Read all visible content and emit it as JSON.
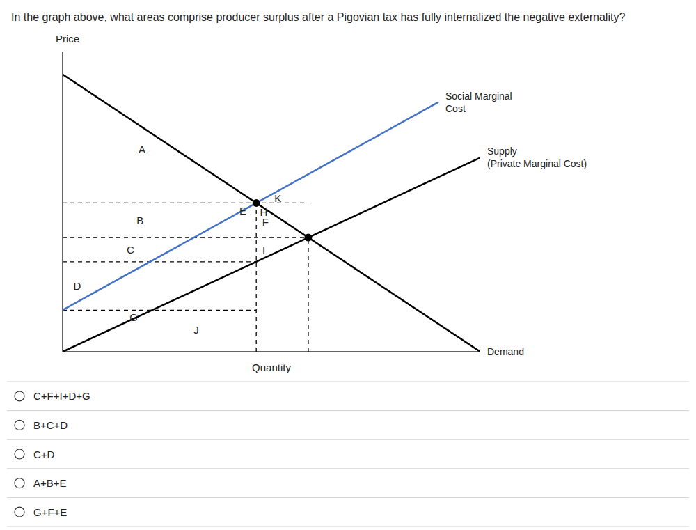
{
  "chart_data": {
    "type": "line",
    "title": "In the graph above, what areas comprise producer surplus after a Pigovian tax has fully internalized the negative externality?",
    "xlabel": "Quantity",
    "ylabel": "Price",
    "xlim": [
      0,
      10
    ],
    "ylim": [
      0,
      10.8
    ],
    "tick_labels": false,
    "grid": false,
    "series": [
      {
        "name": "Demand",
        "type": "line",
        "color": "#000000",
        "x": [
          0,
          10
        ],
        "values": [
          10,
          0
        ]
      },
      {
        "name": "Supply\n(Private Marginal Cost)",
        "type": "line",
        "color": "#000000",
        "x": [
          0,
          10
        ],
        "values": [
          0,
          7
        ]
      },
      {
        "name": "Social Marginal\nCost",
        "type": "line",
        "color": "#4472c4",
        "x": [
          0,
          9
        ],
        "values": [
          1.5,
          9.0
        ]
      },
      {
        "type": "scatter",
        "marker": "circle",
        "color": "#000000",
        "x": [
          4.636363636363637,
          5.882352941176471
        ],
        "values": [
          5.363636363636363,
          4.117647058823529
        ]
      },
      {
        "type": "line",
        "line_style": "dashed",
        "color": "#000000",
        "x": [
          4.636363636363637,
          4.636363636363637
        ],
        "values": [
          0,
          5.363636363636363
        ]
      },
      {
        "type": "line",
        "line_style": "dashed",
        "color": "#000000",
        "x": [
          5.882352941176471,
          5.882352941176471
        ],
        "values": [
          0,
          4.117647058823529
        ]
      },
      {
        "type": "line",
        "line_style": "dashed",
        "color": "#000000",
        "x": [
          0,
          5.882352941176471
        ],
        "values": [
          5.363636363636363,
          5.363636363636363
        ]
      },
      {
        "type": "line",
        "line_style": "dashed",
        "color": "#000000",
        "x": [
          0,
          5.882352941176471
        ],
        "values": [
          4.117647058823529,
          4.117647058823529
        ]
      },
      {
        "type": "line",
        "line_style": "dashed",
        "color": "#000000",
        "x": [
          0,
          4.636363636363637
        ],
        "values": [
          3.2454545454545456,
          3.2454545454545456
        ]
      },
      {
        "type": "line",
        "line_style": "dashed",
        "color": "#000000",
        "x": [
          0,
          4.636363636363637
        ],
        "values": [
          1.5,
          1.5
        ]
      }
    ],
    "annotations": [
      {
        "text": "A",
        "x": 1.9,
        "y": 7.3
      },
      {
        "text": "B",
        "x": 1.8545454545454547,
        "y": 4.740641711229946
      },
      {
        "text": "C",
        "x": 1.6227272727272728,
        "y": 3.6815508021390375
      },
      {
        "text": "D",
        "x": 0.35,
        "y": 2.3727272727272726
      },
      {
        "text": "E",
        "x": 4.316363636363637,
        "y": 5.083636363636363
      },
      {
        "text": "H",
        "x": 4.816363636363637,
        "y": 5.043636363636363
      },
      {
        "text": "K",
        "x": 5.156363636363637,
        "y": 5.543636363636363
      },
      {
        "text": "F",
        "x": 4.856363636363637,
        "y": 4.690641711229946
      },
      {
        "text": "I",
        "x": 4.816363636363637,
        "y": 3.6815508021390375
      },
      {
        "text": "G",
        "x": 1.7,
        "y": 1.25
      },
      {
        "text": "J",
        "x": 3.2,
        "y": 0.8
      }
    ],
    "answer_choices": [
      "C+F+I+D+G",
      "B+C+D",
      "C+D",
      "A+B+E",
      "G+F+E"
    ]
  }
}
